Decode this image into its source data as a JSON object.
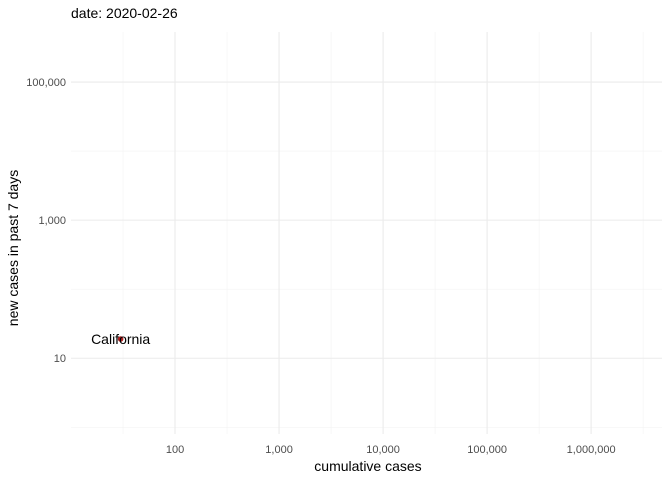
{
  "chart_data": {
    "type": "scatter",
    "title": "date: 2020-02-26",
    "xlabel": "cumulative cases",
    "ylabel": "new cases in past 7 days",
    "x_scale": "log10",
    "y_scale": "log10",
    "xlim": [
      10,
      4800000
    ],
    "ylim": [
      0.8,
      530000
    ],
    "x_ticks": [
      {
        "value": 100,
        "label": "100"
      },
      {
        "value": 1000,
        "label": "1,000"
      },
      {
        "value": 10000,
        "label": "10,000"
      },
      {
        "value": 100000,
        "label": "100,000"
      },
      {
        "value": 1000000,
        "label": "1,000,000"
      }
    ],
    "y_ticks": [
      {
        "value": 10,
        "label": "10"
      },
      {
        "value": 1000,
        "label": "1,000"
      },
      {
        "value": 100000,
        "label": "100,000"
      }
    ],
    "grid": true,
    "points": [
      {
        "label": "California",
        "x": 30,
        "y": 19,
        "color": "#b22222"
      }
    ]
  }
}
